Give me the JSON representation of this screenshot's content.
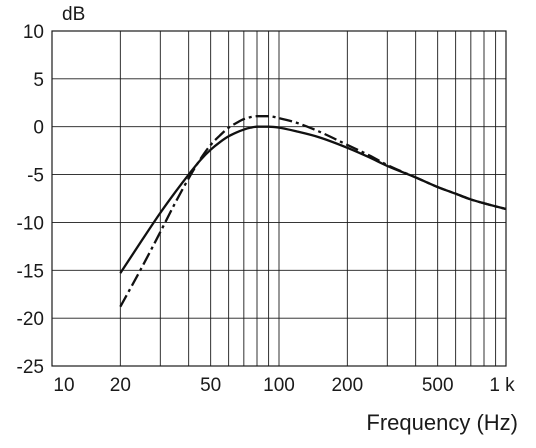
{
  "chart_data": {
    "type": "line",
    "xscale": "log",
    "xlabel": "Frequency (Hz)",
    "ylabel": "dB",
    "xlim": [
      10,
      1000
    ],
    "ylim": [
      -25,
      10
    ],
    "grid": true,
    "x_tick_labels": [
      {
        "value": 10,
        "label": "10"
      },
      {
        "value": 20,
        "label": "20"
      },
      {
        "value": 50,
        "label": "50"
      },
      {
        "value": 100,
        "label": "100"
      },
      {
        "value": 200,
        "label": "200"
      },
      {
        "value": 500,
        "label": "500"
      },
      {
        "value": 1000,
        "label": "1 k"
      }
    ],
    "y_ticks": [
      10,
      5,
      0,
      -5,
      -10,
      -15,
      -20,
      -25
    ],
    "series": [
      {
        "style": "solid",
        "color": "#111111",
        "x": [
          20,
          25,
          30,
          35,
          40,
          45,
          50,
          55,
          60,
          65,
          70,
          75,
          80,
          90,
          100,
          120,
          150,
          200,
          250,
          300,
          400,
          500,
          600,
          700,
          800,
          1000
        ],
        "y": [
          -15.3,
          -11.8,
          -9.0,
          -6.8,
          -5.0,
          -3.5,
          -2.4,
          -1.6,
          -1.0,
          -0.6,
          -0.3,
          -0.1,
          0.0,
          0.0,
          -0.1,
          -0.5,
          -1.1,
          -2.2,
          -3.2,
          -4.1,
          -5.3,
          -6.3,
          -7.0,
          -7.6,
          -8.0,
          -8.6
        ]
      },
      {
        "style": "dash-dot",
        "color": "#111111",
        "x": [
          20,
          25,
          30,
          35,
          40,
          45,
          50,
          55,
          60,
          65,
          70,
          75,
          80,
          90,
          100,
          120,
          150,
          200,
          250,
          300,
          400,
          500,
          600,
          700,
          800,
          1000
        ],
        "y": [
          -18.8,
          -14.6,
          -11.0,
          -7.9,
          -5.4,
          -3.4,
          -1.9,
          -0.9,
          -0.1,
          0.4,
          0.8,
          1.0,
          1.1,
          1.1,
          0.9,
          0.4,
          -0.5,
          -1.9,
          -3.0,
          -4.0,
          -5.3,
          -6.3,
          -7.0,
          -7.6,
          -8.0,
          -8.6
        ]
      }
    ]
  }
}
